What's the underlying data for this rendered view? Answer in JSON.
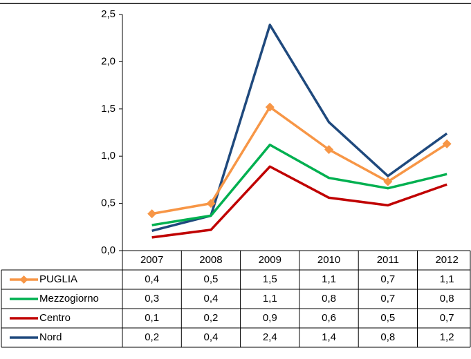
{
  "chart_data": {
    "type": "line",
    "categories": [
      "2007",
      "2008",
      "2009",
      "2010",
      "2011",
      "2012"
    ],
    "series": [
      {
        "name": "PUGLIA",
        "color": "#f79646",
        "marker": "diamond",
        "values": [
          0.39,
          0.5,
          1.52,
          1.07,
          0.73,
          1.13
        ],
        "value_labels": [
          "0,4",
          "0,5",
          "1,5",
          "1,1",
          "0,7",
          "1,1"
        ]
      },
      {
        "name": "Mezzogiorno",
        "color": "#00b050",
        "values": [
          0.27,
          0.37,
          1.12,
          0.77,
          0.66,
          0.81
        ],
        "value_labels": [
          "0,3",
          "0,4",
          "1,1",
          "0,8",
          "0,7",
          "0,8"
        ]
      },
      {
        "name": "Centro",
        "color": "#c00000",
        "values": [
          0.14,
          0.22,
          0.89,
          0.56,
          0.48,
          0.7
        ],
        "value_labels": [
          "0,1",
          "0,2",
          "0,9",
          "0,6",
          "0,5",
          "0,7"
        ]
      },
      {
        "name": "Nord",
        "color": "#1f497d",
        "values": [
          0.21,
          0.37,
          2.39,
          1.36,
          0.79,
          1.24
        ],
        "value_labels": [
          "0,2",
          "0,4",
          "2,4",
          "1,4",
          "0,8",
          "1,2"
        ]
      }
    ],
    "ylim": [
      0,
      2.5
    ],
    "yticks": [
      {
        "value": 0,
        "label": "0,0"
      },
      {
        "value": 0.5,
        "label": "0,5"
      },
      {
        "value": 1,
        "label": "1,0"
      },
      {
        "value": 1.5,
        "label": "1,5"
      },
      {
        "value": 2,
        "label": "2,0"
      },
      {
        "value": 2.5,
        "label": "2,5"
      }
    ]
  }
}
